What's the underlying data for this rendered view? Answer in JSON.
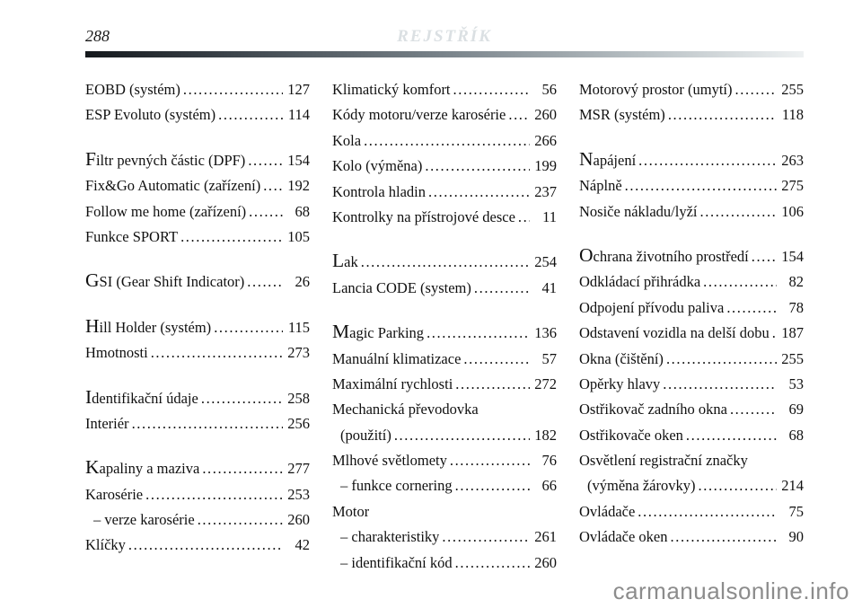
{
  "page": {
    "number": "288",
    "title": "REJSTŘÍK",
    "watermark": "carmanualsonline.info"
  },
  "colors": {
    "title_gray": "#dbe0e3",
    "rule_dark": "#14181c",
    "rule_mid": "#79838a",
    "rule_light": "#eef1f2",
    "watermark_gray": "#8c8c8c",
    "text": "#101010"
  },
  "index": {
    "columns": [
      {
        "entries": [
          {
            "label": "EOBD (systém)",
            "page": "127"
          },
          {
            "label": "ESP Evoluto (systém)",
            "page": "114"
          },
          {
            "label": "Filtr pevných částic (DPF)",
            "page": "154",
            "cap": true,
            "gap": true
          },
          {
            "label": "Fix&Go Automatic (zařízení)",
            "page": "192"
          },
          {
            "label": "Follow me home (zařízení)",
            "page": "68"
          },
          {
            "label": "Funkce SPORT",
            "page": "105"
          },
          {
            "label": "GSI (Gear Shift Indicator)",
            "page": "26",
            "cap": true,
            "gap": true
          },
          {
            "label": "Hill Holder (systém)",
            "page": "115",
            "cap": true,
            "gap": true
          },
          {
            "label": "Hmotnosti",
            "page": "273"
          },
          {
            "label": "Identifikační údaje",
            "page": "258",
            "cap": true,
            "gap": true
          },
          {
            "label": "Interiér",
            "page": "256"
          },
          {
            "label": "Kapaliny a maziva",
            "page": "277",
            "cap": true,
            "gap": true
          },
          {
            "label": "Karosérie",
            "page": "253"
          },
          {
            "label": "– verze karosérie",
            "page": "260",
            "indent": true
          },
          {
            "label": "Klíčky",
            "page": "42"
          }
        ]
      },
      {
        "entries": [
          {
            "label": "Klimatický komfort",
            "page": "56"
          },
          {
            "label": "Kódy motoru/verze karosérie",
            "page": "260"
          },
          {
            "label": "Kola",
            "page": "266"
          },
          {
            "label": "Kolo (výměna)",
            "page": "199"
          },
          {
            "label": "Kontrola hladin",
            "page": "237"
          },
          {
            "label": "Kontrolky na přístrojové desce",
            "page": "11"
          },
          {
            "label": "Lak",
            "page": "254",
            "cap": true,
            "gap": true
          },
          {
            "label": "Lancia CODE (system)",
            "page": "41"
          },
          {
            "label": "Magic Parking",
            "page": "136",
            "cap": true,
            "gap": true
          },
          {
            "label": "Manuální klimatizace",
            "page": "57"
          },
          {
            "label": "Maximální rychlosti",
            "page": "272"
          },
          {
            "label": "Mechanická převodovka",
            "page": ""
          },
          {
            "label": "(použití)",
            "page": "182",
            "indent": true
          },
          {
            "label": "Mlhové světlomety",
            "page": "76"
          },
          {
            "label": "– funkce cornering",
            "page": "66",
            "indent": true
          },
          {
            "label": "Motor",
            "page": ""
          },
          {
            "label": "– charakteristiky",
            "page": "261",
            "indent": true
          },
          {
            "label": "– identifikační kód",
            "page": "260",
            "indent": true
          }
        ]
      },
      {
        "entries": [
          {
            "label": "Motorový prostor (umytí)",
            "page": "255"
          },
          {
            "label": "MSR (systém)",
            "page": "118"
          },
          {
            "label": "Napájení",
            "page": "263",
            "cap": true,
            "gap": true
          },
          {
            "label": "Náplně",
            "page": "275"
          },
          {
            "label": "Nosiče nákladu/lyží",
            "page": "106"
          },
          {
            "label": "Ochrana životního prostředí",
            "page": "154",
            "cap": true,
            "gap": true
          },
          {
            "label": "Odkládací přihrádka",
            "page": "82"
          },
          {
            "label": "Odpojení přívodu paliva",
            "page": "78"
          },
          {
            "label": "Odstavení vozidla na delší dobu",
            "page": "187"
          },
          {
            "label": "Okna (čištění)",
            "page": "255"
          },
          {
            "label": "Opěrky hlavy",
            "page": "53"
          },
          {
            "label": "Ostřikovač zadního okna",
            "page": "69"
          },
          {
            "label": "Ostřikovače oken",
            "page": "68"
          },
          {
            "label": "Osvětlení registrační značky",
            "page": ""
          },
          {
            "label": "(výměna žárovky)",
            "page": "214",
            "indent": true
          },
          {
            "label": "Ovládače",
            "page": "75"
          },
          {
            "label": "Ovládače oken",
            "page": "90"
          }
        ]
      }
    ]
  }
}
